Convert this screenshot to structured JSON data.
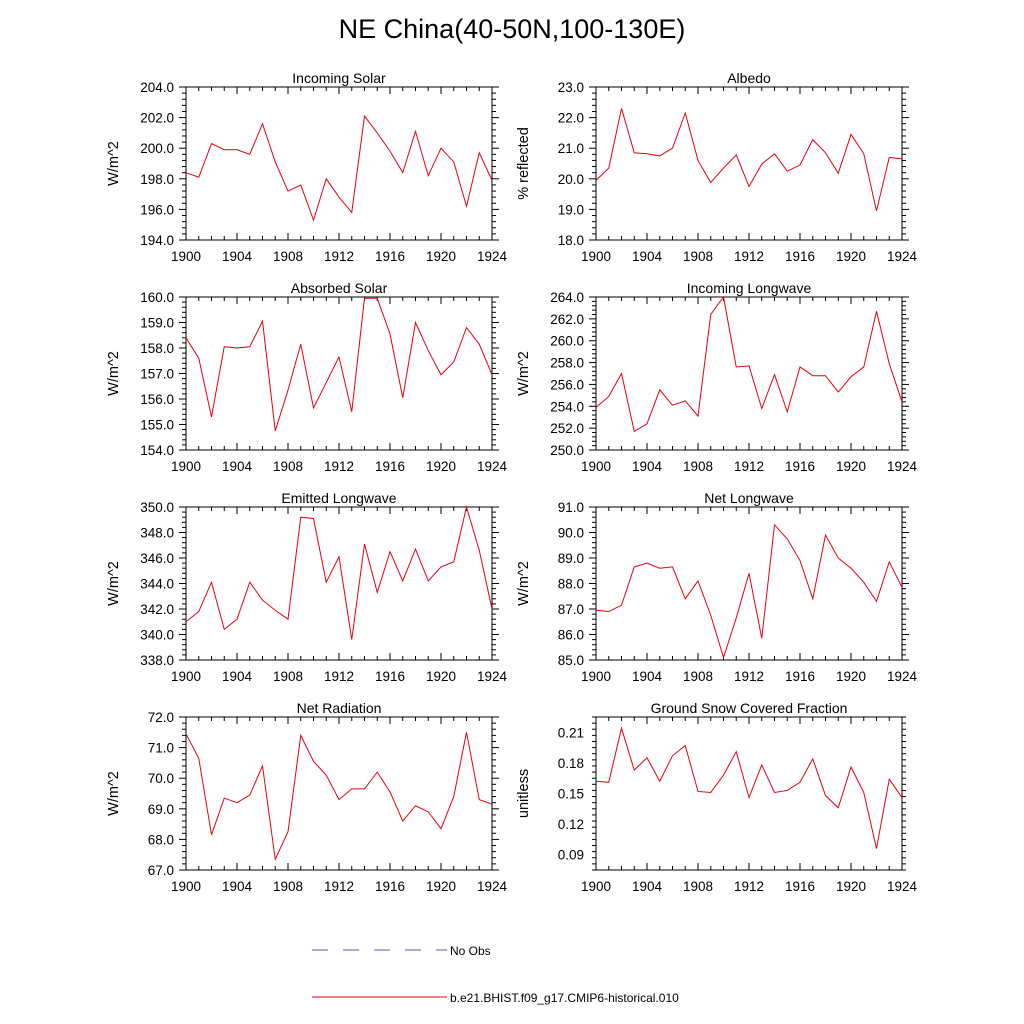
{
  "page_title": "NE China(40-50N,100-130E)",
  "legend": [
    {
      "label": "No Obs",
      "color": "#5a5ab8",
      "dashed": true
    },
    {
      "label": "b.e21.BHIST.f09_g17.CMIP6-historical.010",
      "color": "#e8000b",
      "dashed": false
    }
  ],
  "chart_data": [
    {
      "type": "line",
      "title": "Incoming Solar",
      "ylabel": "W/m^2",
      "xlim": [
        1900,
        1924
      ],
      "ylim": [
        194,
        204
      ],
      "x_ticks": [
        "1900",
        "1904",
        "1908",
        "1912",
        "1916",
        "1920",
        "1924"
      ],
      "y_ticks": [
        "194.0",
        "196.0",
        "198.0",
        "200.0",
        "202.0",
        "204.0"
      ],
      "series": [
        {
          "color": "#e8000b",
          "x": [
            1900,
            1901,
            1902,
            1903,
            1904,
            1905,
            1906,
            1907,
            1908,
            1909,
            1910,
            1911,
            1912,
            1913,
            1914,
            1915,
            1916,
            1917,
            1918,
            1919,
            1920,
            1921,
            1922,
            1923,
            1924
          ],
          "values": [
            198.4,
            198.1,
            200.3,
            199.9,
            199.9,
            199.6,
            201.6,
            199.1,
            197.2,
            197.6,
            195.3,
            198.0,
            196.8,
            195.8,
            202.1,
            201.0,
            199.8,
            198.4,
            201.1,
            198.2,
            200.0,
            199.1,
            196.2,
            199.7,
            197.9
          ]
        }
      ]
    },
    {
      "type": "line",
      "title": "Albedo",
      "ylabel": "% reflected",
      "xlim": [
        1900,
        1924
      ],
      "ylim": [
        18,
        23
      ],
      "x_ticks": [
        "1900",
        "1904",
        "1908",
        "1912",
        "1916",
        "1920",
        "1924"
      ],
      "y_ticks": [
        "18.0",
        "19.0",
        "20.0",
        "21.0",
        "22.0",
        "23.0"
      ],
      "series": [
        {
          "color": "#e8000b",
          "x": [
            1900,
            1901,
            1902,
            1903,
            1904,
            1905,
            1906,
            1907,
            1908,
            1909,
            1910,
            1911,
            1912,
            1913,
            1914,
            1915,
            1916,
            1917,
            1918,
            1919,
            1920,
            1921,
            1922,
            1923,
            1924
          ],
          "values": [
            19.95,
            20.35,
            22.3,
            20.85,
            20.82,
            20.75,
            21.0,
            22.15,
            20.6,
            19.88,
            20.35,
            20.78,
            19.75,
            20.48,
            20.82,
            20.25,
            20.45,
            21.28,
            20.85,
            20.18,
            21.45,
            20.82,
            18.95,
            20.7,
            20.65
          ]
        }
      ]
    },
    {
      "type": "line",
      "title": "Absorbed Solar",
      "ylabel": "W/m^2",
      "xlim": [
        1900,
        1924
      ],
      "ylim": [
        154,
        160
      ],
      "x_ticks": [
        "1900",
        "1904",
        "1908",
        "1912",
        "1916",
        "1920",
        "1924"
      ],
      "y_ticks": [
        "154.0",
        "155.0",
        "156.0",
        "157.0",
        "158.0",
        "159.0",
        "160.0"
      ],
      "series": [
        {
          "color": "#e8000b",
          "x": [
            1900,
            1901,
            1902,
            1903,
            1904,
            1905,
            1906,
            1907,
            1908,
            1909,
            1910,
            1911,
            1912,
            1913,
            1914,
            1915,
            1916,
            1917,
            1918,
            1919,
            1920,
            1921,
            1922,
            1923,
            1924
          ],
          "values": [
            158.4,
            157.6,
            155.3,
            158.05,
            158.0,
            158.05,
            159.05,
            154.75,
            156.35,
            158.15,
            155.65,
            156.65,
            157.65,
            155.5,
            159.95,
            159.95,
            158.55,
            156.05,
            159.0,
            157.9,
            156.95,
            157.45,
            158.8,
            158.15,
            156.95
          ]
        }
      ]
    },
    {
      "type": "line",
      "title": "Incoming Longwave",
      "ylabel": "W/m^2",
      "xlim": [
        1900,
        1924
      ],
      "ylim": [
        250,
        264
      ],
      "x_ticks": [
        "1900",
        "1904",
        "1908",
        "1912",
        "1916",
        "1920",
        "1924"
      ],
      "y_ticks": [
        "250.0",
        "252.0",
        "254.0",
        "256.0",
        "258.0",
        "260.0",
        "262.0",
        "264.0"
      ],
      "series": [
        {
          "color": "#e8000b",
          "x": [
            1900,
            1901,
            1902,
            1903,
            1904,
            1905,
            1906,
            1907,
            1908,
            1909,
            1910,
            1911,
            1912,
            1913,
            1914,
            1915,
            1916,
            1917,
            1918,
            1919,
            1920,
            1921,
            1922,
            1923,
            1924
          ],
          "values": [
            253.9,
            254.9,
            257.0,
            251.7,
            252.4,
            255.5,
            254.1,
            254.5,
            253.1,
            262.4,
            264.0,
            257.6,
            257.7,
            253.8,
            256.9,
            253.5,
            257.6,
            256.8,
            256.8,
            255.3,
            256.7,
            257.6,
            262.7,
            257.9,
            254.4
          ]
        }
      ]
    },
    {
      "type": "line",
      "title": "Emitted Longwave",
      "ylabel": "W/m^2",
      "xlim": [
        1900,
        1924
      ],
      "ylim": [
        338,
        350
      ],
      "x_ticks": [
        "1900",
        "1904",
        "1908",
        "1912",
        "1916",
        "1920",
        "1924"
      ],
      "y_ticks": [
        "338.0",
        "340.0",
        "342.0",
        "344.0",
        "346.0",
        "348.0",
        "350.0"
      ],
      "series": [
        {
          "color": "#e8000b",
          "x": [
            1900,
            1901,
            1902,
            1903,
            1904,
            1905,
            1906,
            1907,
            1908,
            1909,
            1910,
            1911,
            1912,
            1913,
            1914,
            1915,
            1916,
            1917,
            1918,
            1919,
            1920,
            1921,
            1922,
            1923,
            1924
          ],
          "values": [
            341.0,
            341.8,
            344.1,
            340.4,
            341.2,
            344.1,
            342.7,
            341.9,
            341.2,
            349.2,
            349.1,
            344.1,
            346.1,
            339.6,
            347.1,
            343.3,
            346.5,
            344.2,
            346.7,
            344.2,
            345.3,
            345.7,
            350.0,
            346.6,
            342.0
          ]
        }
      ]
    },
    {
      "type": "line",
      "title": "Net Longwave",
      "ylabel": "W/m^2",
      "xlim": [
        1900,
        1924
      ],
      "ylim": [
        85,
        91
      ],
      "x_ticks": [
        "1900",
        "1904",
        "1908",
        "1912",
        "1916",
        "1920",
        "1924"
      ],
      "y_ticks": [
        "85.0",
        "86.0",
        "87.0",
        "88.0",
        "89.0",
        "90.0",
        "91.0"
      ],
      "series": [
        {
          "color": "#e8000b",
          "x": [
            1900,
            1901,
            1902,
            1903,
            1904,
            1905,
            1906,
            1907,
            1908,
            1909,
            1910,
            1911,
            1912,
            1913,
            1914,
            1915,
            1916,
            1917,
            1918,
            1919,
            1920,
            1921,
            1922,
            1923,
            1924
          ],
          "values": [
            86.95,
            86.9,
            87.15,
            88.65,
            88.8,
            88.6,
            88.65,
            87.4,
            88.1,
            86.75,
            85.1,
            86.65,
            88.4,
            85.85,
            90.3,
            89.75,
            88.9,
            87.4,
            89.9,
            89.0,
            88.6,
            88.05,
            87.3,
            88.85,
            87.85
          ]
        }
      ]
    },
    {
      "type": "line",
      "title": "Net Radiation",
      "ylabel": "W/m^2",
      "xlim": [
        1900,
        1924
      ],
      "ylim": [
        67,
        72
      ],
      "x_ticks": [
        "1900",
        "1904",
        "1908",
        "1912",
        "1916",
        "1920",
        "1924"
      ],
      "y_ticks": [
        "67.0",
        "68.0",
        "69.0",
        "70.0",
        "71.0",
        "72.0"
      ],
      "series": [
        {
          "color": "#e8000b",
          "x": [
            1900,
            1901,
            1902,
            1903,
            1904,
            1905,
            1906,
            1907,
            1908,
            1909,
            1910,
            1911,
            1912,
            1913,
            1914,
            1915,
            1916,
            1917,
            1918,
            1919,
            1920,
            1921,
            1922,
            1923,
            1924
          ],
          "values": [
            71.45,
            70.65,
            68.15,
            69.35,
            69.2,
            69.45,
            70.4,
            67.35,
            68.25,
            71.4,
            70.55,
            70.1,
            69.3,
            69.65,
            69.65,
            70.2,
            69.55,
            68.6,
            69.1,
            68.9,
            68.35,
            69.4,
            71.5,
            69.3,
            69.15
          ]
        }
      ]
    },
    {
      "type": "line",
      "title": "Ground Snow Covered Fraction",
      "ylabel": "unitless",
      "xlim": [
        1900,
        1924
      ],
      "ylim": [
        0.075,
        0.225
      ],
      "x_ticks": [
        "1900",
        "1904",
        "1908",
        "1912",
        "1916",
        "1920",
        "1924"
      ],
      "y_ticks": [
        "0.09",
        "0.12",
        "0.15",
        "0.18",
        "0.21"
      ],
      "series": [
        {
          "color": "#e8000b",
          "x": [
            1900,
            1901,
            1902,
            1903,
            1904,
            1905,
            1906,
            1907,
            1908,
            1909,
            1910,
            1911,
            1912,
            1913,
            1914,
            1915,
            1916,
            1917,
            1918,
            1919,
            1920,
            1921,
            1922,
            1923,
            1924
          ],
          "values": [
            0.162,
            0.161,
            0.214,
            0.173,
            0.185,
            0.162,
            0.187,
            0.197,
            0.152,
            0.151,
            0.168,
            0.191,
            0.146,
            0.178,
            0.151,
            0.153,
            0.161,
            0.184,
            0.148,
            0.136,
            0.176,
            0.151,
            0.096,
            0.164,
            0.146
          ]
        }
      ]
    }
  ]
}
